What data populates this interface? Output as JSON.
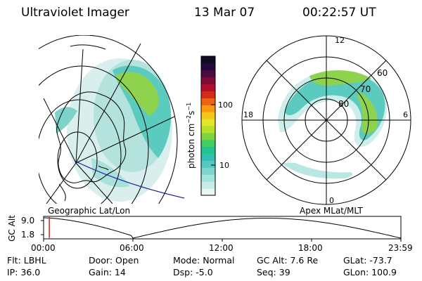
{
  "header": {
    "instrument": "Ultraviolet Imager",
    "date": "13 Mar 07",
    "time": "00:22:57 UT"
  },
  "left_map": {
    "caption": "Geographic Lat/Lon"
  },
  "right_map": {
    "caption": "Apex MLat/MLT",
    "mlt_labels": [
      "12",
      "18",
      "6",
      "0"
    ],
    "mlat_labels": [
      "60",
      "70",
      "80"
    ]
  },
  "colorbar": {
    "unit_label": "photon cm",
    "unit_sup1": "−2",
    "unit_mid": "s",
    "unit_sup2": "−1",
    "tick_labels": [
      "100",
      "10"
    ],
    "colors": [
      "#e6f6f5",
      "#c7ede9",
      "#a4e2dc",
      "#7dd5ce",
      "#54c9c0",
      "#2fc2b3",
      "#22c490",
      "#42ce62",
      "#7ad63c",
      "#b6e02a",
      "#e3e527",
      "#f5c61a",
      "#f79a10",
      "#ee6311",
      "#d42a1a",
      "#b0102a",
      "#7e0d35",
      "#4c0b3f",
      "#26073f",
      "#0d0a22"
    ]
  },
  "alt_plot": {
    "y_label": "GC Alt",
    "y_ticks": [
      "9.0",
      "1.8"
    ],
    "x_ticks": [
      "00:00",
      "06:00",
      "12:00",
      "18:00",
      "23:59"
    ],
    "marker_time_fraction": 0.016,
    "marker_color": "#e02020",
    "curve_color": "#000000"
  },
  "status": {
    "flt": "Flt: LBHL",
    "ip": "IP: 36.0",
    "door": "Door: Open",
    "gain": "Gain: 14",
    "mode": "Mode: Normal",
    "dsp": "Dsp:   -5.0",
    "gc_alt": "GC Alt: 7.6 Re",
    "seq": "Seq: 39",
    "glat": "GLat: -73.7",
    "glon": "GLon: 100.9"
  }
}
